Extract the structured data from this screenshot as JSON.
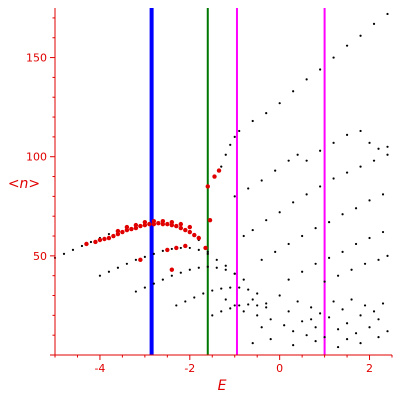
{
  "chart_data": {
    "type": "scatter",
    "title": "",
    "xlabel": "E",
    "ylabel": "<n>",
    "xlim": [
      -5.0,
      2.5
    ],
    "ylim": [
      0,
      175
    ],
    "xticks": [
      -4,
      -2,
      0,
      2
    ],
    "yticks": [
      50,
      100,
      150
    ],
    "grid": false,
    "colors": {
      "axis": "#e00000",
      "red_points": "#e00000",
      "black_points": "#000000",
      "blue_line": "#0000ff",
      "green_line": "#007700",
      "magenta_line": "#ff00ff"
    },
    "vertical_lines": [
      {
        "x": -2.85,
        "color": "blue"
      },
      {
        "x": -1.6,
        "color": "green"
      },
      {
        "x": -0.95,
        "color": "magenta"
      },
      {
        "x": 1.0,
        "color": "magenta"
      }
    ],
    "series": [
      {
        "color": "black",
        "points": [
          [
            -5.0,
            49
          ],
          [
            -4.8,
            51
          ],
          [
            -4.6,
            53
          ],
          [
            -4.4,
            55
          ],
          [
            -4.2,
            57
          ],
          [
            -4.0,
            59
          ],
          [
            -3.8,
            61
          ],
          [
            -3.6,
            62.5
          ],
          [
            -3.4,
            64
          ],
          [
            -3.2,
            65.5
          ],
          [
            -3.0,
            66.5
          ],
          [
            -2.8,
            67
          ],
          [
            -2.6,
            67
          ],
          [
            -2.4,
            66
          ],
          [
            -2.2,
            64.5
          ],
          [
            -2.0,
            62
          ],
          [
            -1.8,
            58
          ],
          [
            -1.6,
            52
          ]
        ]
      },
      {
        "color": "black",
        "points": [
          [
            -4.0,
            40
          ],
          [
            -3.8,
            42
          ],
          [
            -3.6,
            44
          ],
          [
            -3.4,
            46
          ],
          [
            -3.2,
            48
          ],
          [
            -3.0,
            49.5
          ],
          [
            -2.8,
            51
          ],
          [
            -2.6,
            52.5
          ],
          [
            -2.4,
            53.5
          ],
          [
            -2.2,
            54
          ],
          [
            -2.0,
            54
          ],
          [
            -1.8,
            53
          ],
          [
            -1.6,
            51
          ],
          [
            -1.4,
            48
          ],
          [
            -1.2,
            45
          ],
          [
            -1.0,
            41
          ]
        ]
      },
      {
        "color": "black",
        "points": [
          [
            -3.2,
            32
          ],
          [
            -3.0,
            34
          ],
          [
            -2.8,
            36
          ],
          [
            -2.6,
            38
          ],
          [
            -2.4,
            40
          ],
          [
            -2.2,
            41.5
          ],
          [
            -2.0,
            43
          ],
          [
            -1.8,
            44
          ],
          [
            -1.6,
            44.5
          ],
          [
            -1.4,
            44
          ],
          [
            -1.2,
            43
          ],
          [
            -1.0,
            41
          ],
          [
            -0.8,
            38
          ]
        ]
      },
      {
        "color": "black",
        "points": [
          [
            -2.3,
            25
          ],
          [
            -2.1,
            27
          ],
          [
            -1.9,
            29
          ],
          [
            -1.7,
            31
          ],
          [
            -1.5,
            32.5
          ],
          [
            -1.3,
            33.5
          ],
          [
            -1.1,
            34
          ],
          [
            -0.9,
            34
          ],
          [
            -0.7,
            33
          ],
          [
            -0.5,
            31
          ]
        ]
      },
      {
        "color": "black",
        "points": [
          [
            -1.5,
            20
          ],
          [
            -1.3,
            22
          ],
          [
            -1.1,
            23.5
          ],
          [
            -0.9,
            25
          ],
          [
            -0.7,
            25.5
          ],
          [
            -0.5,
            25
          ],
          [
            -0.3,
            24
          ]
        ]
      },
      {
        "color": "black",
        "points": [
          [
            -1.3,
            95
          ],
          [
            -1.2,
            101
          ],
          [
            -1.1,
            106
          ],
          [
            -1.0,
            110
          ],
          [
            -0.9,
            113
          ],
          [
            -0.6,
            118
          ],
          [
            -0.3,
            122
          ],
          [
            0.0,
            127
          ],
          [
            0.3,
            133
          ],
          [
            0.6,
            139
          ],
          [
            0.9,
            144
          ],
          [
            1.2,
            150
          ],
          [
            1.5,
            156
          ],
          [
            1.8,
            161
          ],
          [
            2.1,
            167
          ],
          [
            2.4,
            172
          ]
        ]
      },
      {
        "color": "black",
        "points": [
          [
            -1.0,
            80
          ],
          [
            -0.7,
            84
          ],
          [
            -0.4,
            88
          ],
          [
            -0.1,
            93
          ],
          [
            0.2,
            98
          ],
          [
            0.4,
            101
          ],
          [
            0.6,
            98
          ],
          [
            0.9,
            103
          ],
          [
            1.2,
            107
          ],
          [
            1.5,
            111
          ],
          [
            1.8,
            113
          ],
          [
            2.0,
            107
          ],
          [
            2.2,
            104
          ],
          [
            2.4,
            105
          ]
        ]
      },
      {
        "color": "black",
        "points": [
          [
            -0.8,
            60
          ],
          [
            -0.6,
            63
          ],
          [
            -0.3,
            68
          ],
          [
            0.0,
            72
          ],
          [
            0.3,
            77
          ],
          [
            0.6,
            81
          ],
          [
            0.9,
            85
          ],
          [
            1.2,
            89
          ],
          [
            1.5,
            92
          ],
          [
            1.8,
            95
          ],
          [
            2.1,
            98
          ],
          [
            2.4,
            101
          ]
        ]
      },
      {
        "color": "black",
        "points": [
          [
            -0.4,
            48
          ],
          [
            -0.1,
            52
          ],
          [
            0.2,
            56
          ],
          [
            0.5,
            60
          ],
          [
            0.8,
            64
          ],
          [
            1.1,
            67
          ],
          [
            1.4,
            71
          ],
          [
            1.7,
            74
          ],
          [
            2.0,
            78
          ],
          [
            2.3,
            81
          ]
        ]
      },
      {
        "color": "black",
        "points": [
          [
            0.2,
            38
          ],
          [
            0.5,
            42
          ],
          [
            0.8,
            46
          ],
          [
            1.1,
            49
          ],
          [
            1.4,
            52
          ],
          [
            1.7,
            56
          ],
          [
            2.0,
            59
          ],
          [
            2.3,
            62
          ]
        ]
      },
      {
        "color": "black",
        "points": [
          [
            1.0,
            37
          ],
          [
            1.3,
            40
          ],
          [
            1.6,
            43
          ],
          [
            1.9,
            46
          ],
          [
            2.2,
            48
          ],
          [
            2.4,
            50
          ]
        ]
      },
      {
        "color": "black",
        "points": [
          [
            -1.2,
            28
          ],
          [
            -1.0,
            25
          ],
          [
            -0.8,
            22
          ],
          [
            -0.6,
            28
          ],
          [
            -0.5,
            20
          ],
          [
            -0.3,
            26
          ],
          [
            -0.2,
            18
          ],
          [
            0.0,
            30
          ],
          [
            0.1,
            15
          ],
          [
            0.2,
            22
          ],
          [
            0.3,
            12
          ],
          [
            0.4,
            27
          ],
          [
            0.5,
            17
          ],
          [
            0.6,
            10
          ],
          [
            0.7,
            24
          ],
          [
            0.8,
            14
          ],
          [
            0.9,
            21
          ],
          [
            1.1,
            19
          ],
          [
            1.2,
            27
          ],
          [
            1.3,
            13
          ],
          [
            1.4,
            23
          ],
          [
            1.5,
            16
          ],
          [
            1.6,
            28
          ],
          [
            1.7,
            11
          ],
          [
            1.8,
            20
          ],
          [
            1.9,
            25
          ],
          [
            2.0,
            14
          ],
          [
            2.1,
            22
          ],
          [
            2.2,
            18
          ],
          [
            2.3,
            26
          ],
          [
            2.4,
            12
          ],
          [
            -0.6,
            6
          ],
          [
            -0.2,
            8
          ],
          [
            0.3,
            5
          ],
          [
            0.8,
            7
          ],
          [
            1.3,
            4
          ],
          [
            1.8,
            6
          ],
          [
            2.2,
            9
          ],
          [
            -0.4,
            14
          ],
          [
            0.7,
            18
          ],
          [
            1.0,
            9
          ],
          [
            1.5,
            8
          ]
        ]
      },
      {
        "color": "red",
        "points": [
          [
            -4.3,
            56
          ],
          [
            -4.1,
            57
          ],
          [
            -4.0,
            58
          ],
          [
            -3.9,
            58.5
          ],
          [
            -3.8,
            59
          ],
          [
            -3.7,
            60
          ],
          [
            -3.6,
            61
          ],
          [
            -3.5,
            62
          ],
          [
            -3.4,
            63
          ],
          [
            -3.3,
            63.5
          ],
          [
            -3.2,
            64
          ],
          [
            -3.1,
            65
          ],
          [
            -3.0,
            65.5
          ],
          [
            -2.9,
            66
          ],
          [
            -2.8,
            66
          ],
          [
            -2.7,
            66.5
          ],
          [
            -2.6,
            66
          ],
          [
            -2.5,
            66
          ],
          [
            -2.4,
            65.5
          ],
          [
            -2.3,
            65
          ],
          [
            -2.2,
            64
          ],
          [
            -2.1,
            63
          ],
          [
            -2.0,
            62
          ],
          [
            -1.9,
            60.5
          ],
          [
            -1.8,
            59
          ],
          [
            -3.6,
            62.5
          ],
          [
            -3.4,
            64.5
          ],
          [
            -3.2,
            65.5
          ],
          [
            -3.0,
            67
          ],
          [
            -2.8,
            67.5
          ],
          [
            -2.6,
            67.5
          ],
          [
            -2.4,
            67
          ],
          [
            -2.2,
            66
          ],
          [
            -2.0,
            64.5
          ],
          [
            -1.65,
            54
          ],
          [
            -1.55,
            68
          ],
          [
            -1.6,
            85
          ],
          [
            -1.45,
            90
          ],
          [
            -1.35,
            93
          ],
          [
            -2.5,
            53
          ],
          [
            -2.3,
            54
          ],
          [
            -2.1,
            55
          ],
          [
            -3.1,
            48
          ],
          [
            -2.4,
            43
          ]
        ]
      }
    ]
  }
}
